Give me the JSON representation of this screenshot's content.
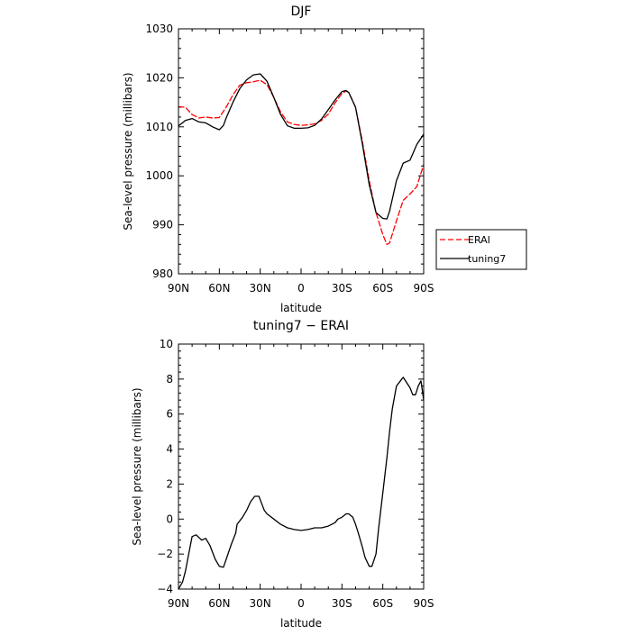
{
  "chart_data": [
    {
      "type": "line",
      "title": "DJF",
      "xlabel": "latitude",
      "ylabel": "Sea-level pressure (millibars)",
      "x_tick_labels": [
        "90N",
        "60N",
        "30N",
        "0",
        "30S",
        "60S",
        "90S"
      ],
      "x_tick_values": [
        90,
        60,
        30,
        0,
        -30,
        -60,
        -90
      ],
      "xlim": [
        90,
        -90
      ],
      "ylim": [
        980,
        1030
      ],
      "y_tick_labels": [
        "980",
        "990",
        "1000",
        "1010",
        "1020",
        "1030"
      ],
      "y_tick_values": [
        980,
        990,
        1000,
        1010,
        1020,
        1030
      ],
      "grid": false,
      "legend_position": "right",
      "series": [
        {
          "name": "ERAI",
          "style": "dashed",
          "color": "#ff0000",
          "x": [
            90,
            85,
            80,
            75,
            70,
            65,
            60,
            55,
            50,
            45,
            40,
            35,
            30,
            25,
            20,
            15,
            10,
            5,
            0,
            -5,
            -10,
            -15,
            -20,
            -25,
            -30,
            -33,
            -35,
            -40,
            -45,
            -50,
            -55,
            -60,
            -63,
            -65,
            -70,
            -75,
            -80,
            -85,
            -90
          ],
          "values": [
            1014.1,
            1014.0,
            1012.5,
            1011.8,
            1012.0,
            1011.8,
            1011.9,
            1014.0,
            1016.5,
            1018.5,
            1019.0,
            1019.2,
            1019.5,
            1018.6,
            1016.0,
            1013.0,
            1011.0,
            1010.5,
            1010.3,
            1010.4,
            1010.6,
            1011.3,
            1012.6,
            1014.9,
            1016.8,
            1017.3,
            1017.0,
            1014.0,
            1007.0,
            999.0,
            992.5,
            988.0,
            986.0,
            986.3,
            990.8,
            995.0,
            996.3,
            997.8,
            1002.3
          ]
        },
        {
          "name": "tuning7",
          "style": "solid",
          "color": "#000000",
          "x": [
            90,
            87,
            85,
            80,
            75,
            70,
            65,
            60,
            57,
            55,
            50,
            45,
            40,
            35,
            30,
            25,
            20,
            15,
            10,
            5,
            0,
            -5,
            -10,
            -15,
            -20,
            -25,
            -30,
            -33,
            -35,
            -40,
            -45,
            -50,
            -55,
            -60,
            -63,
            -65,
            -70,
            -75,
            -80,
            -85,
            -90
          ],
          "values": [
            1010.2,
            1010.8,
            1011.3,
            1011.7,
            1011.0,
            1010.8,
            1010.0,
            1009.4,
            1010.3,
            1011.8,
            1015.0,
            1017.8,
            1019.6,
            1020.6,
            1020.8,
            1019.3,
            1016.0,
            1012.5,
            1010.2,
            1009.7,
            1009.7,
            1009.8,
            1010.3,
            1011.6,
            1013.5,
            1015.5,
            1017.2,
            1017.4,
            1017.0,
            1014.0,
            1006.5,
            998.2,
            992.5,
            991.3,
            991.2,
            992.8,
            999.0,
            1002.6,
            1003.2,
            1006.4,
            1008.5
          ]
        }
      ]
    },
    {
      "type": "line",
      "title": "tuning7 − ERAI",
      "xlabel": "latitude",
      "ylabel": "Sea-level pressure (millibars)",
      "x_tick_labels": [
        "90N",
        "60N",
        "30N",
        "0",
        "30S",
        "60S",
        "90S"
      ],
      "x_tick_values": [
        90,
        60,
        30,
        0,
        -30,
        -60,
        -90
      ],
      "xlim": [
        90,
        -90
      ],
      "ylim": [
        -4,
        10
      ],
      "y_tick_labels": [
        "−4",
        "−2",
        "0",
        "2",
        "4",
        "6",
        "8",
        "10"
      ],
      "y_tick_values": [
        -4,
        -2,
        0,
        2,
        4,
        6,
        8,
        10
      ],
      "grid": false,
      "series": [
        {
          "style": "solid",
          "color": "#000000",
          "x": [
            90,
            87,
            85,
            82,
            80,
            77,
            73,
            70,
            67,
            63,
            60,
            57,
            55,
            51,
            48,
            47,
            43,
            40,
            37,
            34,
            31,
            29,
            27,
            25,
            20,
            15,
            10,
            5,
            0,
            -5,
            -10,
            -15,
            -20,
            -25,
            -27,
            -30,
            -33,
            -35,
            -38,
            -40,
            -42,
            -45,
            -47,
            -50,
            -52,
            -55,
            -57,
            -60,
            -63,
            -65,
            -67,
            -70,
            -72,
            -75,
            -80,
            -82,
            -84,
            -86,
            -88,
            -90
          ],
          "values": [
            -4.0,
            -3.6,
            -3.0,
            -1.8,
            -1.0,
            -0.9,
            -1.2,
            -1.1,
            -1.5,
            -2.3,
            -2.7,
            -2.75,
            -2.3,
            -1.4,
            -0.8,
            -0.3,
            0.1,
            0.5,
            1.0,
            1.3,
            1.3,
            0.9,
            0.5,
            0.3,
            0.0,
            -0.3,
            -0.5,
            -0.6,
            -0.65,
            -0.6,
            -0.5,
            -0.5,
            -0.4,
            -0.2,
            0.0,
            0.1,
            0.3,
            0.3,
            0.1,
            -0.3,
            -0.8,
            -1.6,
            -2.2,
            -2.7,
            -2.7,
            -2.0,
            -0.5,
            1.5,
            3.5,
            5.0,
            6.3,
            7.6,
            7.8,
            8.1,
            7.5,
            7.1,
            7.1,
            7.6,
            7.9,
            6.8
          ]
        }
      ]
    }
  ]
}
